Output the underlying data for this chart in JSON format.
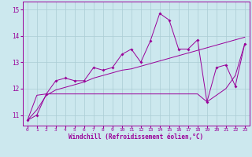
{
  "xlabel": "Windchill (Refroidissement éolien,°C)",
  "bg_color": "#cce8ee",
  "grid_color": "#aaccd4",
  "line_color": "#990099",
  "xlim": [
    -0.5,
    23.5
  ],
  "ylim": [
    10.6,
    15.3
  ],
  "yticks": [
    11,
    12,
    13,
    14,
    15
  ],
  "xticks": [
    0,
    1,
    2,
    3,
    4,
    5,
    6,
    7,
    8,
    9,
    10,
    11,
    12,
    13,
    14,
    15,
    16,
    17,
    18,
    19,
    20,
    21,
    22,
    23
  ],
  "series1_x": [
    0,
    1,
    2,
    3,
    4,
    5,
    6,
    7,
    8,
    9,
    10,
    11,
    12,
    13,
    14,
    15,
    16,
    17,
    18,
    19,
    20,
    21,
    22,
    23
  ],
  "series1_y": [
    10.8,
    11.0,
    11.8,
    12.3,
    12.4,
    12.3,
    12.3,
    12.8,
    12.7,
    12.8,
    13.3,
    13.5,
    13.0,
    13.8,
    14.85,
    14.6,
    13.5,
    13.5,
    13.85,
    11.5,
    12.8,
    12.9,
    12.1,
    13.7
  ],
  "series2_x": [
    0,
    1,
    2,
    3,
    4,
    5,
    6,
    7,
    8,
    9,
    10,
    11,
    12,
    13,
    14,
    15,
    16,
    17,
    18,
    19,
    20,
    21,
    22,
    23
  ],
  "series2_y": [
    10.8,
    11.2,
    11.75,
    11.95,
    12.05,
    12.15,
    12.25,
    12.4,
    12.5,
    12.6,
    12.7,
    12.75,
    12.85,
    12.95,
    13.05,
    13.15,
    13.25,
    13.35,
    13.45,
    13.55,
    13.65,
    13.75,
    13.85,
    13.95
  ],
  "series3_x": [
    0,
    1,
    2,
    3,
    4,
    5,
    6,
    7,
    8,
    9,
    10,
    11,
    12,
    13,
    14,
    15,
    16,
    17,
    18,
    19,
    20,
    21,
    22,
    23
  ],
  "series3_y": [
    10.8,
    11.75,
    11.8,
    11.8,
    11.8,
    11.8,
    11.8,
    11.8,
    11.8,
    11.8,
    11.8,
    11.8,
    11.8,
    11.8,
    11.8,
    11.8,
    11.8,
    11.8,
    11.8,
    11.5,
    11.75,
    12.0,
    12.5,
    13.7
  ]
}
